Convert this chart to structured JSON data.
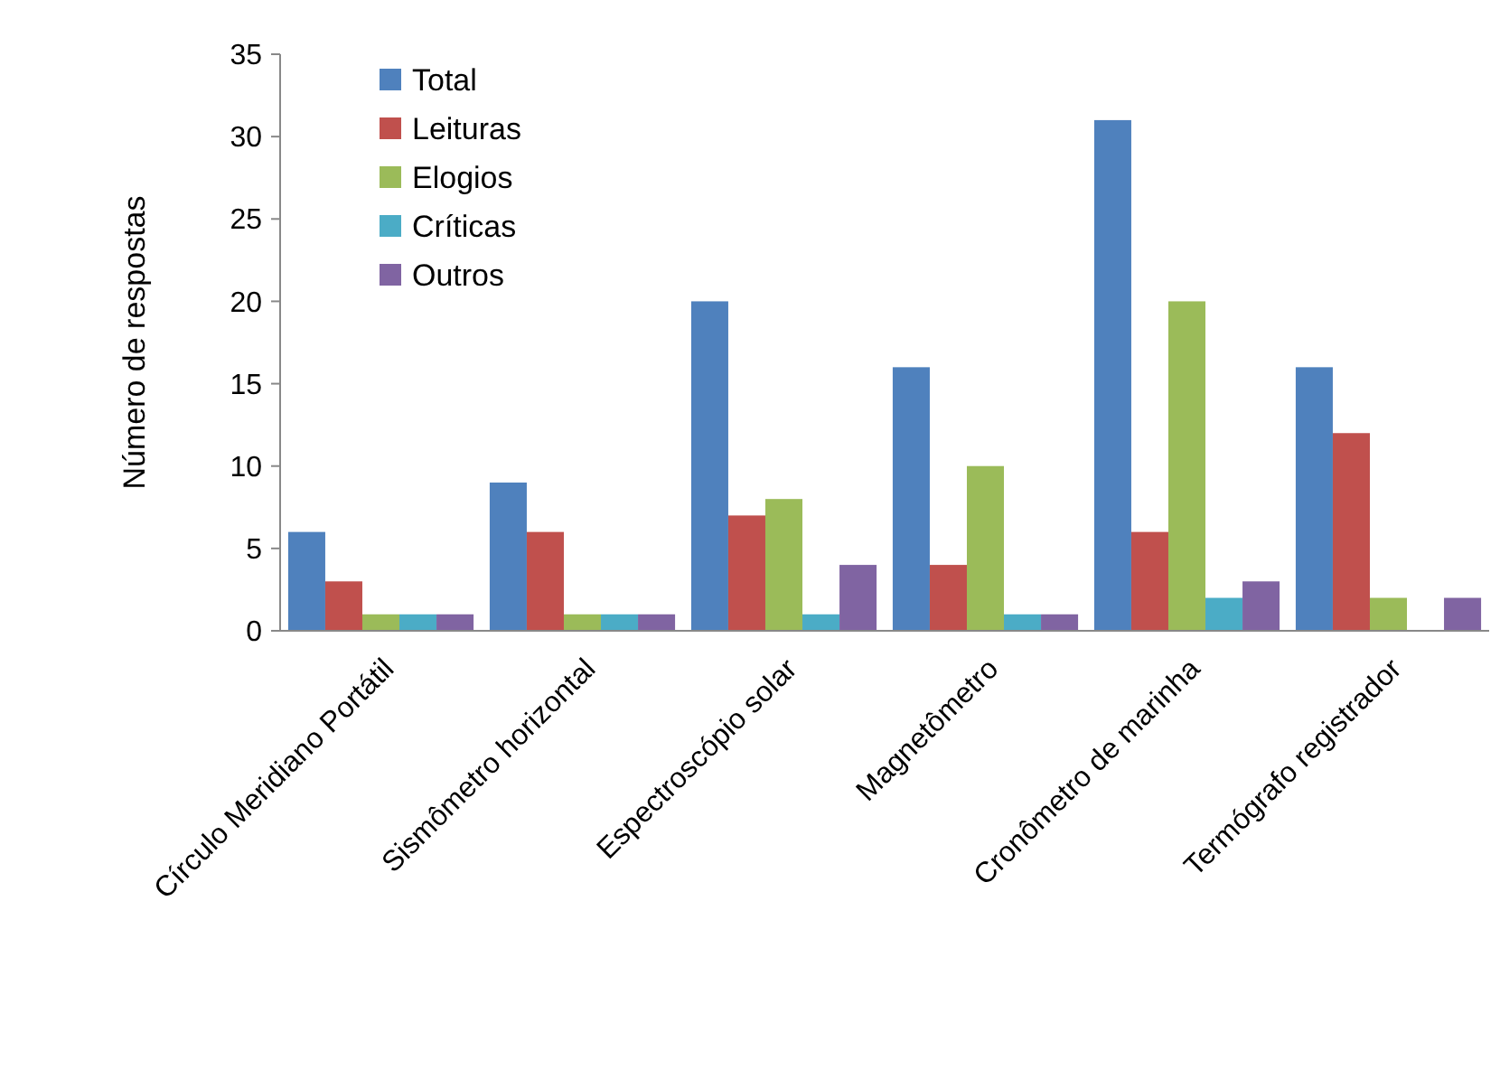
{
  "chart_data": {
    "type": "bar",
    "ylabel": "Número de respostas",
    "categories": [
      "Círculo Meridiano Portátil",
      "Sismômetro horizontal",
      "Espectroscópio solar",
      "Magnetômetro",
      "Cronômetro de marinha",
      "Termógrafo registrador"
    ],
    "series": [
      {
        "name": "Total",
        "color": "#4f81bd",
        "values": [
          6,
          9,
          20,
          16,
          31,
          16
        ]
      },
      {
        "name": "Leituras",
        "color": "#c0504d",
        "values": [
          3,
          6,
          7,
          4,
          6,
          12
        ]
      },
      {
        "name": "Elogios",
        "color": "#9bbb59",
        "values": [
          1,
          1,
          8,
          10,
          20,
          2
        ]
      },
      {
        "name": "Críticas",
        "color": "#4bacc6",
        "values": [
          1,
          1,
          1,
          1,
          2,
          0
        ]
      },
      {
        "name": "Outros",
        "color": "#8064a2",
        "values": [
          1,
          1,
          4,
          1,
          3,
          2
        ]
      }
    ],
    "ylim": [
      0,
      35
    ],
    "yticks": [
      0,
      5,
      10,
      15,
      20,
      25,
      30,
      35
    ],
    "legend": "top left",
    "grid": false
  }
}
